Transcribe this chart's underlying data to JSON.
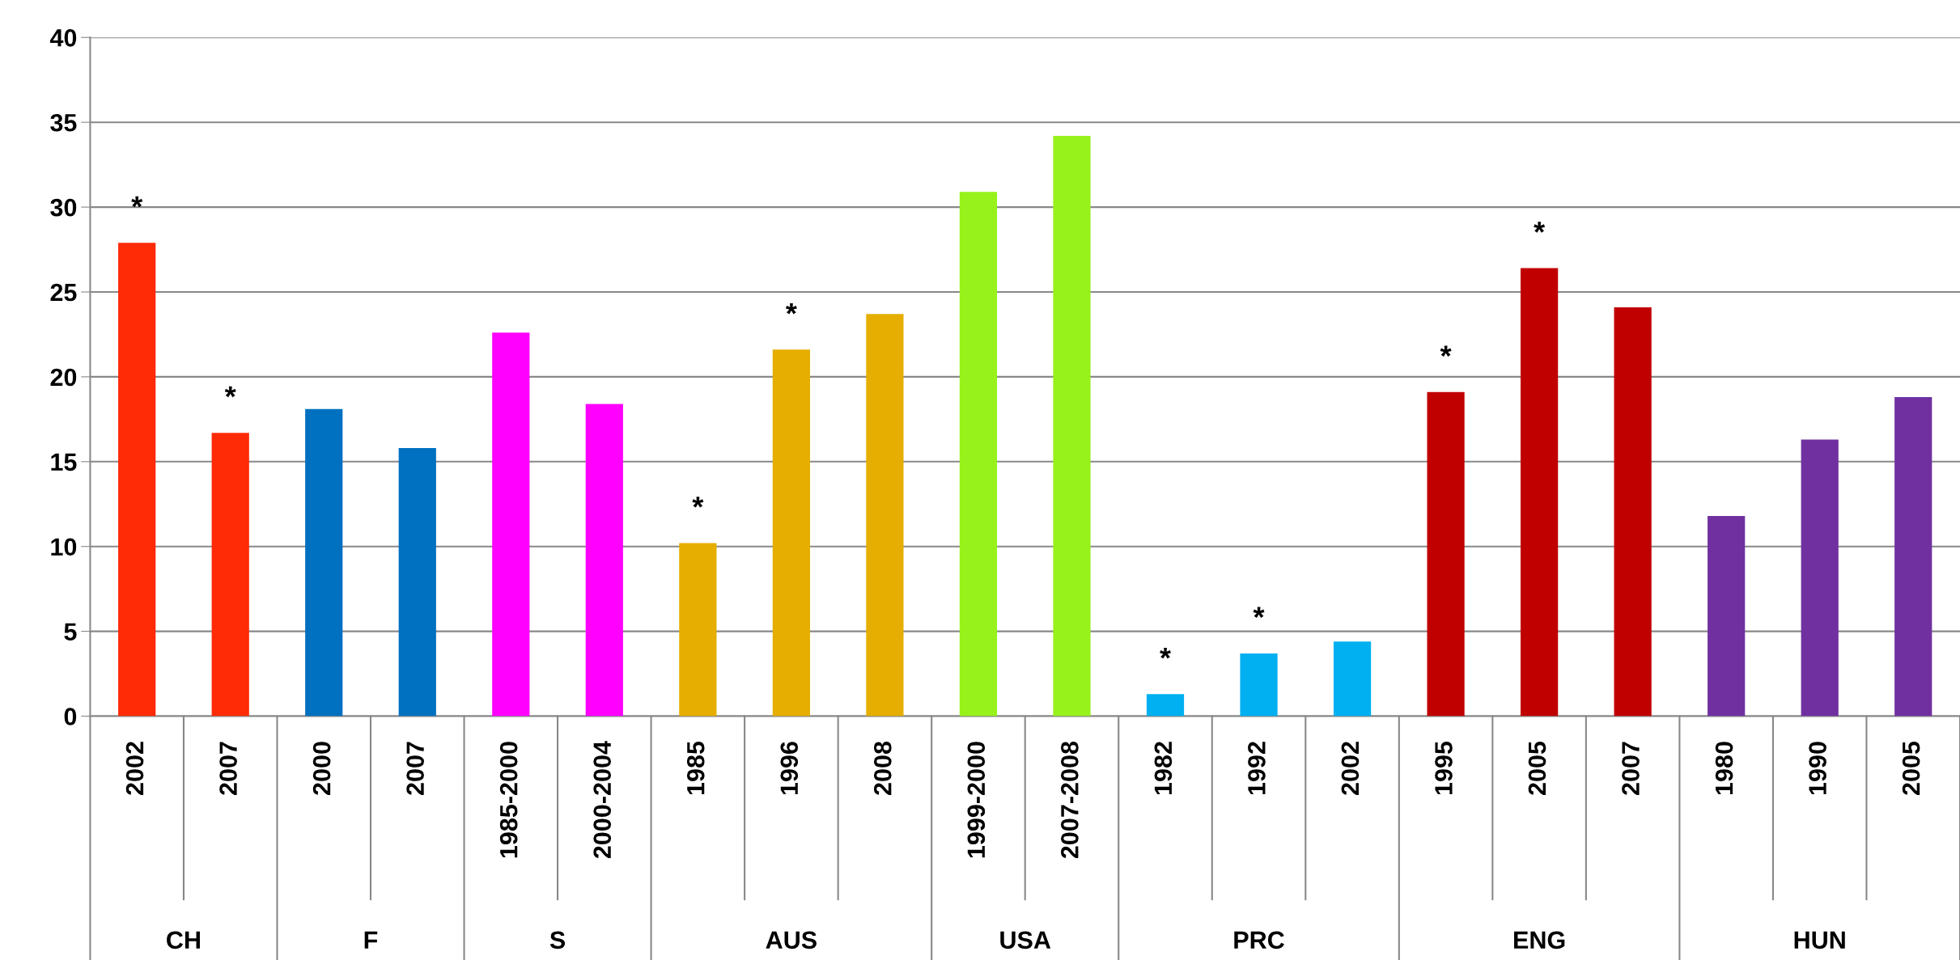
{
  "chart_data": {
    "type": "bar",
    "categories": [
      "2002",
      "2007",
      "2000",
      "2007",
      "1985-2000",
      "2000-2004",
      "1985",
      "1996",
      "2008",
      "1999-2000",
      "2007-2008",
      "1982",
      "1992",
      "2002",
      "1995",
      "2005",
      "2007",
      "1980",
      "1990",
      "2005"
    ],
    "values": [
      27.9,
      16.7,
      18.1,
      15.8,
      22.6,
      18.4,
      10.2,
      21.6,
      23.7,
      30.9,
      34.2,
      1.3,
      3.7,
      4.4,
      19.1,
      26.4,
      24.1,
      11.8,
      16.3,
      18.8
    ],
    "colors": [
      "#ff2a06",
      "#ff2a06",
      "#0070c0",
      "#0070c0",
      "#ff00ff",
      "#ff00ff",
      "#e5ae00",
      "#e5ae00",
      "#e5ae00",
      "#96f21a",
      "#96f21a",
      "#00b0f0",
      "#00b0f0",
      "#00b0f0",
      "#c00000",
      "#c00000",
      "#c00000",
      "#7030a0",
      "#7030a0",
      "#7030a0"
    ],
    "value_labels": [
      "*",
      "*",
      null,
      null,
      null,
      null,
      "*",
      "*",
      null,
      null,
      null,
      "*",
      "*",
      null,
      "*",
      "*",
      null,
      null,
      null,
      null
    ],
    "annotations": [
      "CH",
      "F",
      "S",
      "AUS",
      "USA",
      "PRC",
      "ENG",
      "HUN"
    ],
    "ylim": [
      0,
      40
    ],
    "yticks": [
      0,
      5,
      10,
      15,
      20,
      25,
      30,
      35,
      40
    ],
    "grid": "y",
    "legend": false
  }
}
